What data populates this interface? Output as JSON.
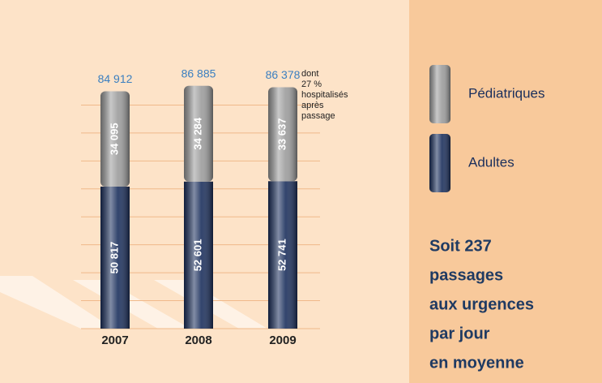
{
  "chart_data": {
    "type": "stacked_bar",
    "categories": [
      "2007",
      "2008",
      "2009"
    ],
    "series": [
      {
        "name": "Adultes",
        "color": "#1b2f5c",
        "values": [
          50817,
          52601,
          52741
        ],
        "value_labels": [
          "50 817",
          "52 601",
          "52 741"
        ]
      },
      {
        "name": "Pédiatriques",
        "color": "#9c9c9c",
        "values": [
          34095,
          34284,
          33637
        ],
        "value_labels": [
          "34 095",
          "34 284",
          "33 637"
        ]
      }
    ],
    "totals": [
      84912,
      86885,
      86378
    ],
    "total_labels": [
      "84 912",
      "86 885",
      "86 378"
    ],
    "ylim": [
      0,
      90000
    ],
    "yticks": [
      10000,
      20000,
      30000,
      40000,
      50000,
      60000,
      70000,
      80000
    ],
    "grid": true,
    "annotation": [
      "dont",
      "27 %",
      "hospitalisés",
      "après",
      "passage"
    ],
    "summary": [
      "Soit 237",
      "passages",
      "aux urgences",
      "par jour",
      "en moyenne"
    ]
  }
}
